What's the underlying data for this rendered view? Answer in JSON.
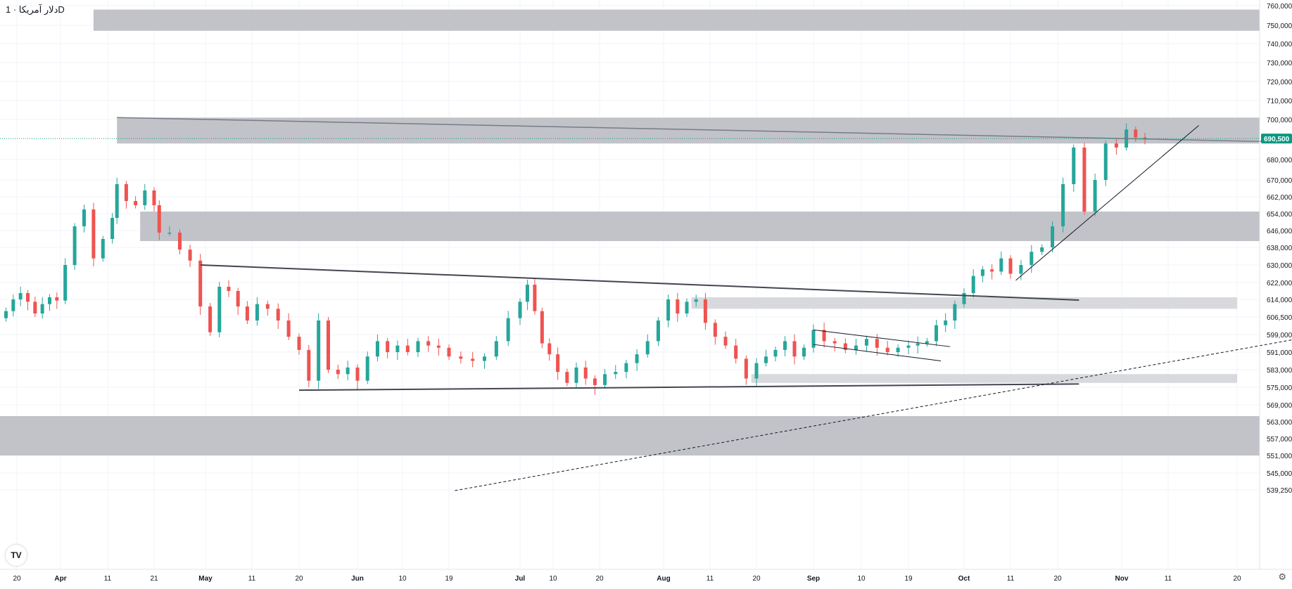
{
  "header": {
    "title": "دلار آمریکا · 1D"
  },
  "logo": {
    "text": "TV"
  },
  "colors": {
    "up": "#26a69a",
    "down": "#ef5350",
    "zone": "#bfc0c6",
    "zone_light": "#d6d7db",
    "last_price_bg": "#089981"
  },
  "chart_data": {
    "type": "candlestick",
    "title": "دلار آمریکا · 1D",
    "price_axis": {
      "ticks": [
        760000,
        750000,
        740000,
        730000,
        720000,
        710000,
        700000,
        680000,
        670000,
        662000,
        654000,
        646000,
        638000,
        630000,
        622000,
        614000,
        606500,
        599000,
        591000,
        583000,
        575000,
        569000,
        563000,
        557000,
        551000,
        545000,
        539250
      ],
      "tick_labels": [
        "760,000",
        "750,000",
        "740,000",
        "730,000",
        "720,000",
        "710,000",
        "700,000",
        "680,000",
        "670,000",
        "662,000",
        "654,000",
        "646,000",
        "638,000",
        "630,000",
        "622,000",
        "614,000",
        "606,500",
        "599,000",
        "591,000",
        "583,000",
        "575,000",
        "569,000",
        "563,000",
        "557,000",
        "551,000",
        "545,000",
        "539,250"
      ]
    },
    "time_axis": {
      "labels": [
        {
          "label": "20",
          "date": "2024-03-20"
        },
        {
          "label": "Apr",
          "date": "2024-04-01"
        },
        {
          "label": "11",
          "date": "2024-04-11"
        },
        {
          "label": "21",
          "date": "2024-04-21"
        },
        {
          "label": "May",
          "date": "2024-05-01"
        },
        {
          "label": "11",
          "date": "2024-05-11"
        },
        {
          "label": "20",
          "date": "2024-05-20"
        },
        {
          "label": "Jun",
          "date": "2024-06-01"
        },
        {
          "label": "10",
          "date": "2024-06-10"
        },
        {
          "label": "19",
          "date": "2024-06-19"
        },
        {
          "label": "Jul",
          "date": "2024-07-01"
        },
        {
          "label": "10",
          "date": "2024-07-10"
        },
        {
          "label": "20",
          "date": "2024-07-20"
        },
        {
          "label": "Aug",
          "date": "2024-08-01"
        },
        {
          "label": "11",
          "date": "2024-08-11"
        },
        {
          "label": "20",
          "date": "2024-08-20"
        },
        {
          "label": "Sep",
          "date": "2024-09-01"
        },
        {
          "label": "10",
          "date": "2024-09-10"
        },
        {
          "label": "19",
          "date": "2024-09-19"
        },
        {
          "label": "Oct",
          "date": "2024-10-01"
        },
        {
          "label": "11",
          "date": "2024-10-11"
        },
        {
          "label": "20",
          "date": "2024-10-20"
        },
        {
          "label": "Nov",
          "date": "2024-11-01"
        },
        {
          "label": "11",
          "date": "2024-11-11"
        },
        {
          "label": "20",
          "date": "2024-11-20"
        }
      ]
    },
    "last_price": {
      "value": 690500,
      "label": "690,500"
    },
    "candles": [
      {
        "date": "2024-03-17",
        "close": 609000
      },
      {
        "date": "2024-03-19",
        "close": 614000
      },
      {
        "date": "2024-03-21",
        "close": 617000
      },
      {
        "date": "2024-03-23",
        "close": 613000
      },
      {
        "date": "2024-03-25",
        "close": 608000
      },
      {
        "date": "2024-03-27",
        "close": 612000
      },
      {
        "date": "2024-03-29",
        "close": 615000
      },
      {
        "date": "2024-03-31",
        "close": 613500
      },
      {
        "date": "2024-04-02",
        "close": 630000
      },
      {
        "date": "2024-04-04",
        "close": 648000
      },
      {
        "date": "2024-04-06",
        "close": 656000
      },
      {
        "date": "2024-04-08",
        "close": 633000
      },
      {
        "date": "2024-04-10",
        "close": 642000
      },
      {
        "date": "2024-04-12",
        "close": 652000
      },
      {
        "date": "2024-04-13",
        "close": 668000
      },
      {
        "date": "2024-04-15",
        "close": 660000
      },
      {
        "date": "2024-04-17",
        "close": 658000
      },
      {
        "date": "2024-04-19",
        "close": 665000
      },
      {
        "date": "2024-04-21",
        "close": 658000
      },
      {
        "date": "2024-04-22",
        "close": 645000
      },
      {
        "date": "2024-04-24",
        "close": 645000
      },
      {
        "date": "2024-04-26",
        "close": 637000
      },
      {
        "date": "2024-04-28",
        "close": 632000
      },
      {
        "date": "2024-04-30",
        "close": 611000
      },
      {
        "date": "2024-05-02",
        "close": 600000
      },
      {
        "date": "2024-05-04",
        "close": 620000
      },
      {
        "date": "2024-05-06",
        "close": 618000
      },
      {
        "date": "2024-05-08",
        "close": 611000
      },
      {
        "date": "2024-05-10",
        "close": 605000
      },
      {
        "date": "2024-05-12",
        "close": 612000
      },
      {
        "date": "2024-05-14",
        "close": 610000
      },
      {
        "date": "2024-05-16",
        "close": 605000
      },
      {
        "date": "2024-05-18",
        "close": 598000
      },
      {
        "date": "2024-05-20",
        "close": 592000
      },
      {
        "date": "2024-05-22",
        "close": 578000
      },
      {
        "date": "2024-05-24",
        "close": 605000
      },
      {
        "date": "2024-05-26",
        "close": 583000
      },
      {
        "date": "2024-05-28",
        "close": 581000
      },
      {
        "date": "2024-05-30",
        "close": 584000
      },
      {
        "date": "2024-06-01",
        "close": 578000
      },
      {
        "date": "2024-06-03",
        "close": 589000
      },
      {
        "date": "2024-06-05",
        "close": 596000
      },
      {
        "date": "2024-06-07",
        "close": 591000
      },
      {
        "date": "2024-06-09",
        "close": 594000
      },
      {
        "date": "2024-06-11",
        "close": 591000
      },
      {
        "date": "2024-06-13",
        "close": 596000
      },
      {
        "date": "2024-06-15",
        "close": 594000
      },
      {
        "date": "2024-06-17",
        "close": 593000
      },
      {
        "date": "2024-06-19",
        "close": 589000
      },
      {
        "date": "2024-06-21",
        "close": 588000
      },
      {
        "date": "2024-06-23",
        "close": 587000
      },
      {
        "date": "2024-06-25",
        "close": 589000
      },
      {
        "date": "2024-06-27",
        "close": 596000
      },
      {
        "date": "2024-06-29",
        "close": 606000
      },
      {
        "date": "2024-07-01",
        "close": 613000
      },
      {
        "date": "2024-07-03",
        "close": 621000
      },
      {
        "date": "2024-07-05",
        "close": 609000
      },
      {
        "date": "2024-07-07",
        "close": 595000
      },
      {
        "date": "2024-07-09",
        "close": 590000
      },
      {
        "date": "2024-07-11",
        "close": 582000
      },
      {
        "date": "2024-07-13",
        "close": 577000
      },
      {
        "date": "2024-07-15",
        "close": 584000
      },
      {
        "date": "2024-07-17",
        "close": 579000
      },
      {
        "date": "2024-07-19",
        "close": 576000
      },
      {
        "date": "2024-07-21",
        "close": 581000
      },
      {
        "date": "2024-07-23",
        "close": 582000
      },
      {
        "date": "2024-07-25",
        "close": 586000
      },
      {
        "date": "2024-07-27",
        "close": 590000
      },
      {
        "date": "2024-07-29",
        "close": 596000
      },
      {
        "date": "2024-07-31",
        "close": 605000
      },
      {
        "date": "2024-08-02",
        "close": 614000
      },
      {
        "date": "2024-08-04",
        "close": 608000
      },
      {
        "date": "2024-08-06",
        "close": 613000
      },
      {
        "date": "2024-08-08",
        "close": 614000
      },
      {
        "date": "2024-08-10",
        "close": 604000
      },
      {
        "date": "2024-08-12",
        "close": 598000
      },
      {
        "date": "2024-08-14",
        "close": 594000
      },
      {
        "date": "2024-08-16",
        "close": 588000
      },
      {
        "date": "2024-08-18",
        "close": 579000
      },
      {
        "date": "2024-08-20",
        "close": 586000
      },
      {
        "date": "2024-08-22",
        "close": 589000
      },
      {
        "date": "2024-08-24",
        "close": 592000
      },
      {
        "date": "2024-08-26",
        "close": 596000
      },
      {
        "date": "2024-08-28",
        "close": 589000
      },
      {
        "date": "2024-08-30",
        "close": 593000
      },
      {
        "date": "2024-09-01",
        "close": 601000
      },
      {
        "date": "2024-09-03",
        "close": 596000
      },
      {
        "date": "2024-09-05",
        "close": 595000
      },
      {
        "date": "2024-09-07",
        "close": 592000
      },
      {
        "date": "2024-09-09",
        "close": 594000
      },
      {
        "date": "2024-09-11",
        "close": 597000
      },
      {
        "date": "2024-09-13",
        "close": 593000
      },
      {
        "date": "2024-09-15",
        "close": 591000
      },
      {
        "date": "2024-09-17",
        "close": 593000
      },
      {
        "date": "2024-09-19",
        "close": 594000
      },
      {
        "date": "2024-09-21",
        "close": 595000
      },
      {
        "date": "2024-09-23",
        "close": 596000
      },
      {
        "date": "2024-09-25",
        "close": 603000
      },
      {
        "date": "2024-09-27",
        "close": 605000
      },
      {
        "date": "2024-09-29",
        "close": 612000
      },
      {
        "date": "2024-10-01",
        "close": 617000
      },
      {
        "date": "2024-10-03",
        "close": 625000
      },
      {
        "date": "2024-10-05",
        "close": 628000
      },
      {
        "date": "2024-10-07",
        "close": 627000
      },
      {
        "date": "2024-10-09",
        "close": 633000
      },
      {
        "date": "2024-10-11",
        "close": 626000
      },
      {
        "date": "2024-10-13",
        "close": 630000
      },
      {
        "date": "2024-10-15",
        "close": 636000
      },
      {
        "date": "2024-10-17",
        "close": 638000
      },
      {
        "date": "2024-10-19",
        "close": 648000
      },
      {
        "date": "2024-10-21",
        "close": 668000
      },
      {
        "date": "2024-10-23",
        "close": 686000
      },
      {
        "date": "2024-10-25",
        "close": 655000
      },
      {
        "date": "2024-10-27",
        "close": 670000
      },
      {
        "date": "2024-10-29",
        "close": 688000
      },
      {
        "date": "2024-10-31",
        "close": 686000
      },
      {
        "date": "2024-11-02",
        "close": 695000
      },
      {
        "date": "2024-11-04",
        "close": 691000
      },
      {
        "date": "2024-11-06",
        "close": 690500
      }
    ]
  }
}
